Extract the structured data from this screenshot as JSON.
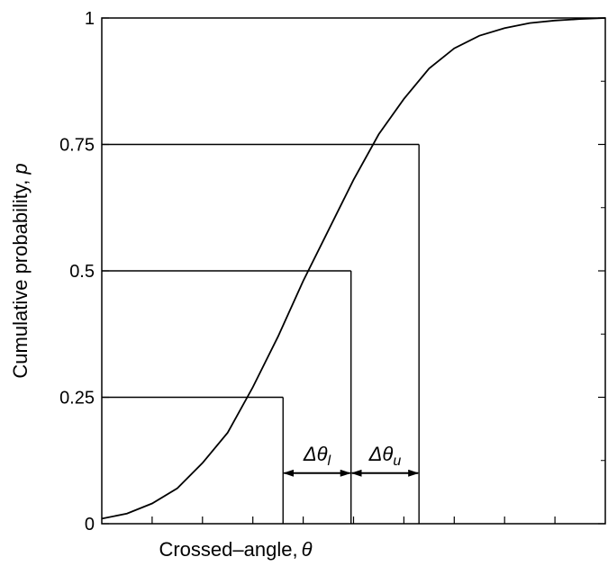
{
  "chart_data": {
    "type": "line",
    "title": "",
    "xlabel": "Crossed–angle,",
    "xlabel_symbol": "θ",
    "ylabel": "Cumulative probability,",
    "ylabel_symbol": "p",
    "ylim": [
      0,
      1
    ],
    "xlim": [
      0,
      1
    ],
    "y_ticks": [
      0,
      0.25,
      0.5,
      0.75,
      1
    ],
    "y_tick_labels": [
      "0",
      "0.25",
      "0.5",
      "0.75",
      "1"
    ],
    "x_tick_labels_shown": false,
    "grid": false,
    "series": [
      {
        "x": [
          0,
          0.05,
          0.1,
          0.15,
          0.2,
          0.25,
          0.3,
          0.35,
          0.4,
          0.45,
          0.5,
          0.55,
          0.6,
          0.65,
          0.7,
          0.75,
          0.8,
          0.85,
          0.9,
          0.95,
          1
        ],
        "y": [
          0.01,
          0.02,
          0.04,
          0.07,
          0.12,
          0.18,
          0.27,
          0.37,
          0.48,
          0.58,
          0.68,
          0.77,
          0.84,
          0.9,
          0.94,
          0.965,
          0.98,
          0.99,
          0.995,
          0.998,
          1
        ]
      }
    ],
    "reference_lines": [
      {
        "p": 0.25,
        "theta": 0.36
      },
      {
        "p": 0.5,
        "theta": 0.495
      },
      {
        "p": 0.75,
        "theta": 0.63
      }
    ],
    "annotations": [
      {
        "label": "Δθ",
        "subscript": "l",
        "from": 0.36,
        "to": 0.495
      },
      {
        "label": "Δθ",
        "subscript": "u",
        "from": 0.495,
        "to": 0.63
      }
    ]
  }
}
